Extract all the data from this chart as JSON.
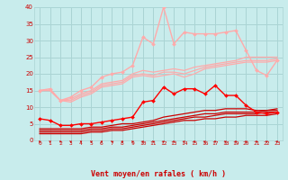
{
  "bg_color": "#c8ecec",
  "grid_color": "#aad4d4",
  "xlabel": "Vent moyen/en rafales ( km/h )",
  "xlabel_color": "#cc0000",
  "tick_color": "#cc0000",
  "xlim": [
    -0.5,
    23.5
  ],
  "ylim": [
    0,
    40
  ],
  "yticks": [
    0,
    5,
    10,
    15,
    20,
    25,
    30,
    35,
    40
  ],
  "xticks": [
    0,
    1,
    2,
    3,
    4,
    5,
    6,
    7,
    8,
    9,
    10,
    11,
    12,
    13,
    14,
    15,
    16,
    17,
    18,
    19,
    20,
    21,
    22,
    23
  ],
  "series": [
    {
      "y": [
        2.0,
        2.0,
        2.0,
        2.0,
        2.0,
        2.5,
        2.5,
        3.0,
        3.0,
        3.5,
        4.0,
        4.5,
        5.0,
        5.5,
        6.0,
        6.0,
        6.5,
        6.5,
        7.0,
        7.0,
        7.5,
        7.5,
        7.5,
        8.0
      ],
      "color": "#cc0000",
      "lw": 0.9,
      "marker": null,
      "markersize": 0,
      "alpha": 1.0,
      "zorder": 3
    },
    {
      "y": [
        2.5,
        2.5,
        2.5,
        2.5,
        2.5,
        3.0,
        3.0,
        3.5,
        3.5,
        4.0,
        4.5,
        5.0,
        5.5,
        6.0,
        6.5,
        7.0,
        7.0,
        7.5,
        8.0,
        8.0,
        8.0,
        8.0,
        8.5,
        8.5
      ],
      "color": "#cc0000",
      "lw": 0.9,
      "marker": null,
      "markersize": 0,
      "alpha": 1.0,
      "zorder": 3
    },
    {
      "y": [
        3.0,
        3.0,
        3.0,
        3.0,
        3.0,
        3.5,
        3.5,
        4.0,
        4.0,
        4.5,
        5.0,
        5.5,
        6.0,
        6.5,
        7.0,
        7.5,
        8.0,
        8.0,
        8.5,
        8.5,
        8.5,
        8.5,
        9.0,
        9.0
      ],
      "color": "#cc0000",
      "lw": 0.9,
      "marker": null,
      "markersize": 0,
      "alpha": 1.0,
      "zorder": 3
    },
    {
      "y": [
        3.5,
        3.5,
        3.5,
        3.5,
        3.5,
        4.0,
        4.0,
        4.5,
        5.0,
        5.0,
        5.5,
        6.0,
        7.0,
        7.5,
        8.0,
        8.5,
        9.0,
        9.0,
        9.5,
        9.5,
        9.5,
        9.0,
        9.0,
        9.5
      ],
      "color": "#cc0000",
      "lw": 0.9,
      "marker": null,
      "markersize": 0,
      "alpha": 1.0,
      "zorder": 3
    },
    {
      "y": [
        6.5,
        6.0,
        4.5,
        4.5,
        5.0,
        5.0,
        5.5,
        6.0,
        6.5,
        7.0,
        11.5,
        12.0,
        16.0,
        14.0,
        15.5,
        15.5,
        14.0,
        16.5,
        13.5,
        13.5,
        10.5,
        8.5,
        8.0,
        8.5
      ],
      "color": "#ff0000",
      "lw": 1.0,
      "marker": "D",
      "markersize": 2.0,
      "alpha": 1.0,
      "zorder": 5
    },
    {
      "y": [
        15.0,
        15.5,
        12.0,
        13.0,
        15.0,
        16.0,
        19.0,
        20.0,
        20.5,
        22.5,
        31.0,
        29.0,
        40.0,
        29.0,
        32.5,
        32.0,
        32.0,
        32.0,
        32.5,
        33.0,
        27.0,
        21.0,
        19.5,
        24.0
      ],
      "color": "#ffaaaa",
      "lw": 1.0,
      "marker": "D",
      "markersize": 2.0,
      "alpha": 1.0,
      "zorder": 4
    },
    {
      "y": [
        15.0,
        15.0,
        12.0,
        12.5,
        14.0,
        15.0,
        17.0,
        17.5,
        18.0,
        20.0,
        21.0,
        20.5,
        21.0,
        21.5,
        21.0,
        22.0,
        22.5,
        23.0,
        23.5,
        24.0,
        25.0,
        25.0,
        25.0,
        25.0
      ],
      "color": "#ffaaaa",
      "lw": 0.9,
      "marker": null,
      "markersize": 0,
      "alpha": 1.0,
      "zorder": 3
    },
    {
      "y": [
        15.0,
        15.0,
        12.0,
        12.0,
        13.5,
        14.5,
        16.5,
        17.0,
        17.5,
        19.5,
        20.0,
        19.5,
        20.5,
        20.5,
        20.0,
        21.0,
        22.0,
        22.5,
        23.0,
        23.5,
        24.0,
        24.0,
        24.0,
        24.5
      ],
      "color": "#ffaaaa",
      "lw": 0.9,
      "marker": null,
      "markersize": 0,
      "alpha": 1.0,
      "zorder": 3
    },
    {
      "y": [
        15.0,
        15.0,
        12.0,
        11.5,
        13.0,
        14.0,
        16.0,
        16.5,
        17.0,
        19.0,
        19.5,
        19.0,
        19.5,
        20.0,
        19.0,
        20.0,
        21.5,
        22.0,
        22.5,
        23.0,
        23.5,
        23.5,
        23.5,
        24.0
      ],
      "color": "#ffaaaa",
      "lw": 0.9,
      "marker": null,
      "markersize": 0,
      "alpha": 1.0,
      "zorder": 3
    }
  ],
  "arrow_color": "#cc0000"
}
